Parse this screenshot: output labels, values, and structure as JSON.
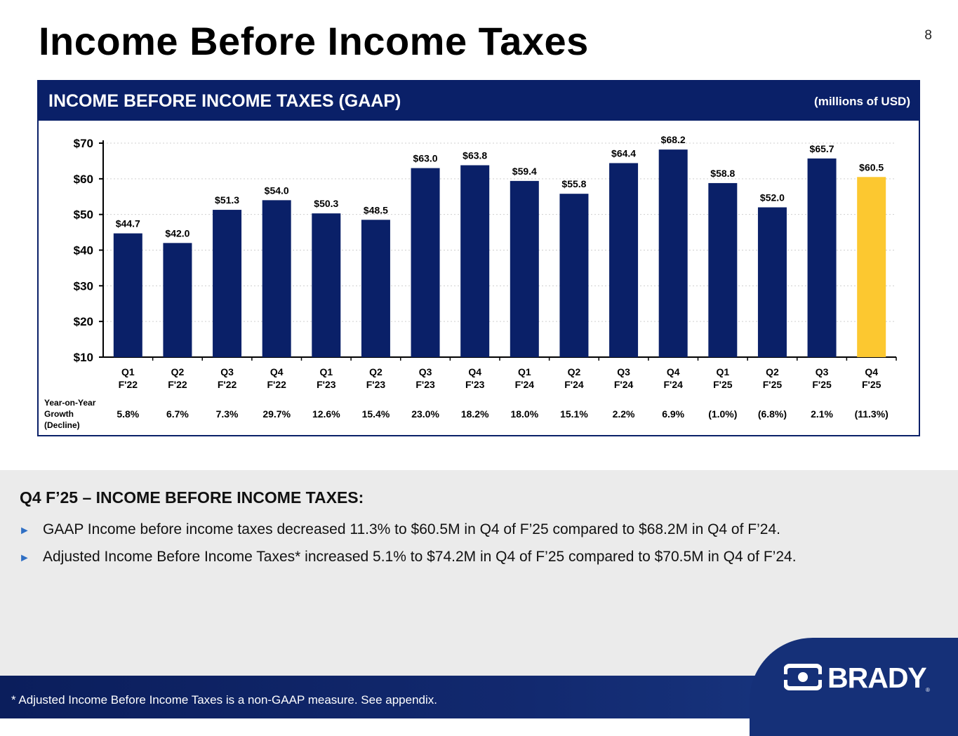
{
  "page": {
    "title": "Income Before Income Taxes",
    "number": "8"
  },
  "panel": {
    "title": "INCOME BEFORE INCOME TAXES (GAAP)",
    "unit": "(millions of USD)"
  },
  "chart_data": {
    "type": "bar",
    "title": "INCOME BEFORE INCOME TAXES (GAAP)",
    "ylabel": "",
    "xlabel": "",
    "ylim": [
      10,
      70
    ],
    "yticks": [
      "$10",
      "$20",
      "$30",
      "$40",
      "$50",
      "$60",
      "$70"
    ],
    "grid": true,
    "categories": [
      [
        "Q1",
        "F'22"
      ],
      [
        "Q2",
        "F'22"
      ],
      [
        "Q3",
        "F'22"
      ],
      [
        "Q4",
        "F'22"
      ],
      [
        "Q1",
        "F'23"
      ],
      [
        "Q2",
        "F'23"
      ],
      [
        "Q3",
        "F'23"
      ],
      [
        "Q4",
        "F'23"
      ],
      [
        "Q1",
        "F'24"
      ],
      [
        "Q2",
        "F'24"
      ],
      [
        "Q3",
        "F'24"
      ],
      [
        "Q4",
        "F'24"
      ],
      [
        "Q1",
        "F'25"
      ],
      [
        "Q2",
        "F'25"
      ],
      [
        "Q3",
        "F'25"
      ],
      [
        "Q4",
        "F'25"
      ]
    ],
    "values": [
      44.7,
      42.0,
      51.3,
      54.0,
      50.3,
      48.5,
      63.0,
      63.8,
      59.4,
      55.8,
      64.4,
      68.2,
      58.8,
      52.0,
      65.7,
      60.5
    ],
    "value_labels": [
      "$44.7",
      "$42.0",
      "$51.3",
      "$54.0",
      "$50.3",
      "$48.5",
      "$63.0",
      "$63.8",
      "$59.4",
      "$55.8",
      "$64.4",
      "$68.2",
      "$58.8",
      "$52.0",
      "$65.7",
      "$60.5"
    ],
    "bar_color": "#0a2068",
    "highlight_color": "#fcc830",
    "highlight_index": 15,
    "growth_label": [
      "Year-on-Year",
      "Growth",
      "(Decline)"
    ],
    "growth": [
      "5.8%",
      "6.7%",
      "7.3%",
      "29.7%",
      "12.6%",
      "15.4%",
      "23.0%",
      "18.2%",
      "18.0%",
      "15.1%",
      "2.2%",
      "6.9%",
      "(1.0%)",
      "(6.8%)",
      "2.1%",
      "(11.3%)"
    ]
  },
  "summary": {
    "heading": "Q4 F’25 – INCOME BEFORE INCOME TAXES:",
    "bullet_glyph": "►",
    "bullets": [
      "GAAP Income before income taxes decreased 11.3% to $60.5M in Q4 of F’25 compared to $68.2M in Q4 of F’24.",
      "Adjusted Income Before Income Taxes* increased 5.1% to $74.2M in Q4 of F’25 compared to $70.5M in Q4 of F’24."
    ]
  },
  "footer": {
    "footnote": "* Adjusted Income Before Income Taxes is a non-GAAP measure.  See appendix.",
    "logo_text": "BRADY",
    "logo_reg": "®"
  }
}
